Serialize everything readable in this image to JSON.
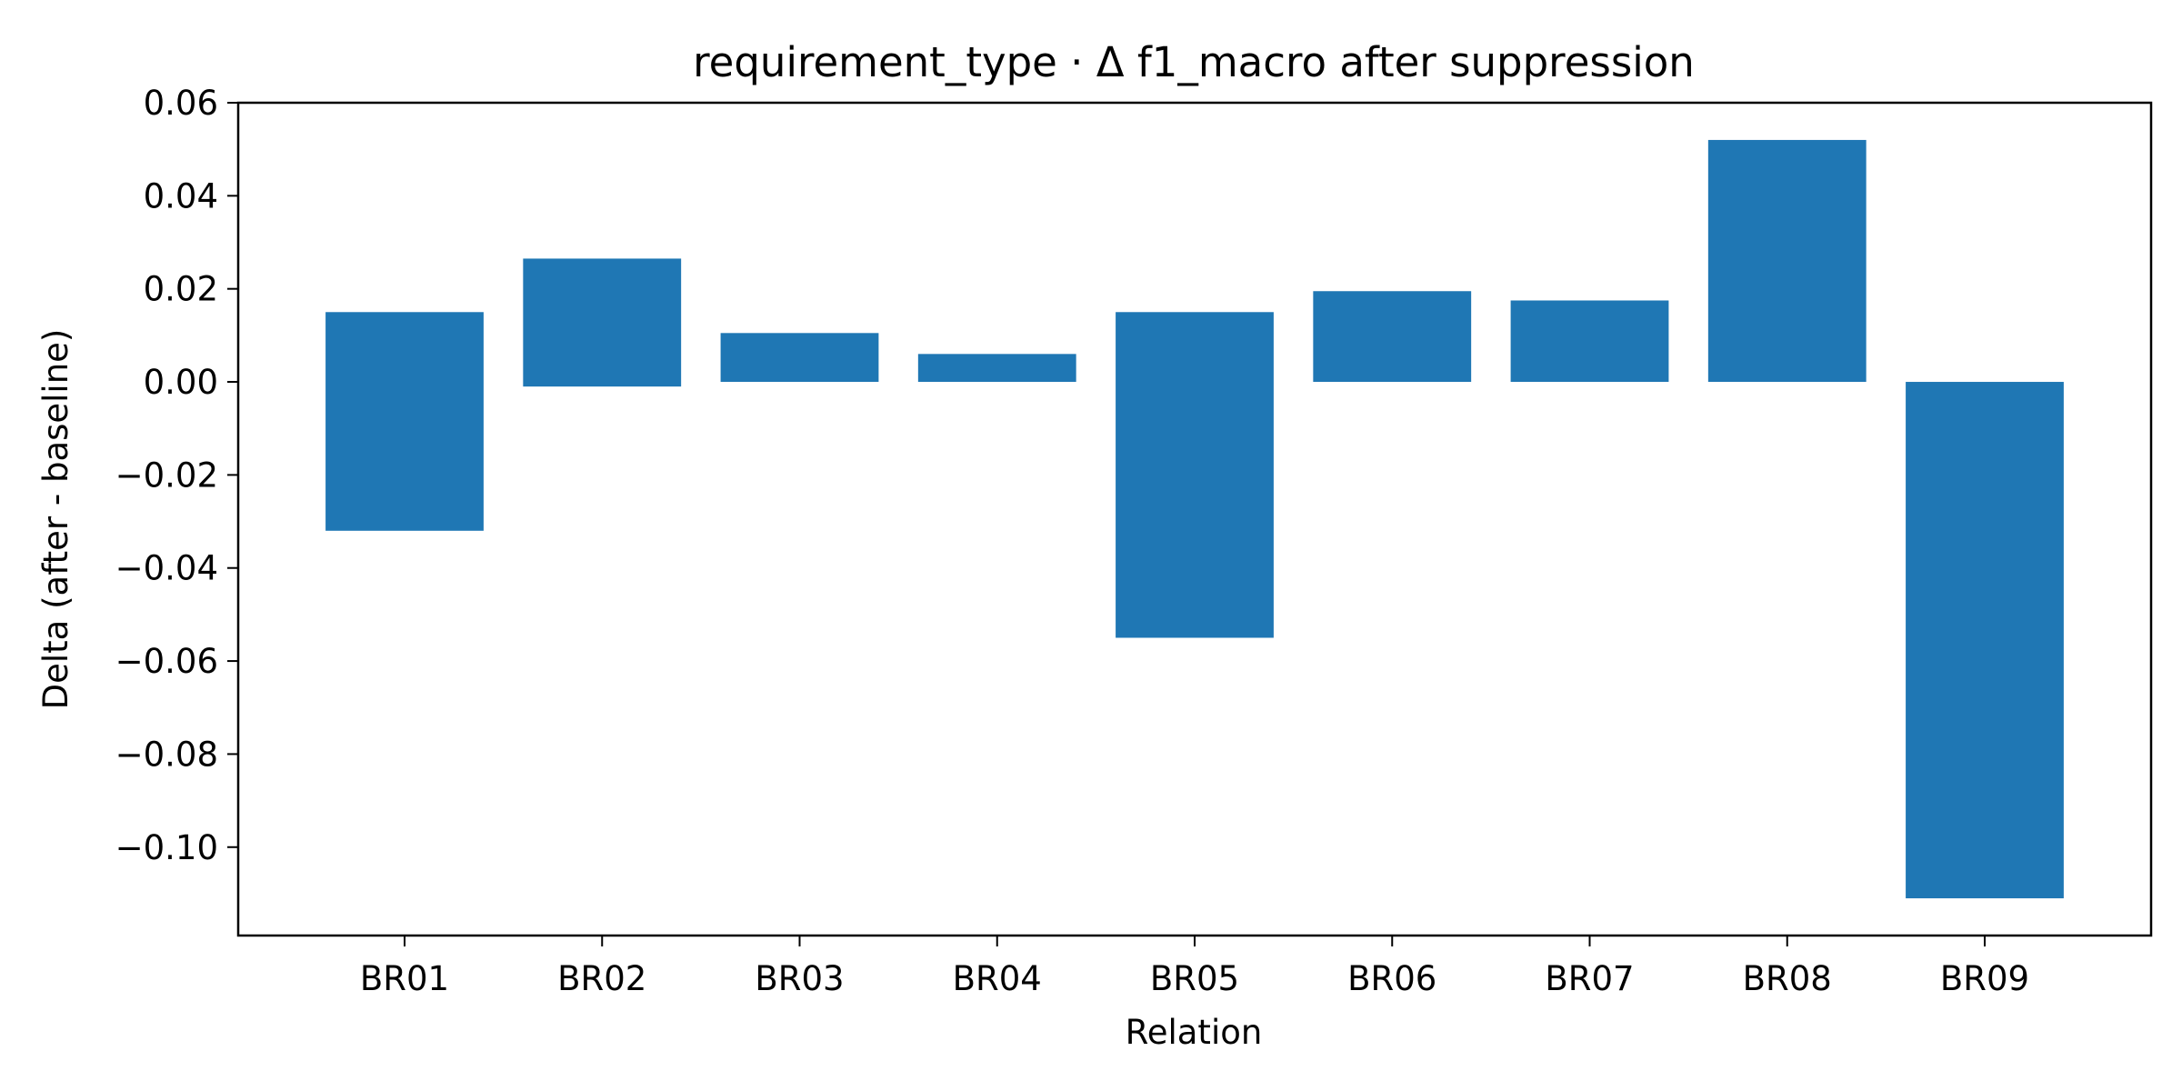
{
  "chart_data": {
    "type": "bar",
    "title": "requirement_type · Δ f1_macro after suppression",
    "xlabel": "Relation",
    "ylabel": "Delta (after - baseline)",
    "ylim": [
      -0.119,
      0.06
    ],
    "yticks": [
      0.06,
      0.04,
      0.02,
      0.0,
      -0.02,
      -0.04,
      -0.06,
      -0.08,
      -0.1
    ],
    "ytick_labels": [
      "0.06",
      "0.04",
      "0.02",
      "0.00",
      "−0.02",
      "−0.04",
      "−0.06",
      "−0.08",
      "−0.10"
    ],
    "grid": false,
    "legend": "none",
    "bar_color": "#1f77b4",
    "categories": [
      "BR01",
      "BR02",
      "BR03",
      "BR04",
      "BR05",
      "BR06",
      "BR07",
      "BR08",
      "BR09"
    ],
    "bars": [
      {
        "bottom": -0.032,
        "top": 0.015
      },
      {
        "bottom": -0.001,
        "top": 0.0265
      },
      {
        "bottom": 0.0,
        "top": 0.0105
      },
      {
        "bottom": 0.0,
        "top": 0.006
      },
      {
        "bottom": -0.055,
        "top": 0.015
      },
      {
        "bottom": 0.0,
        "top": 0.0195
      },
      {
        "bottom": 0.0,
        "top": 0.0175
      },
      {
        "bottom": 0.0,
        "top": 0.052
      },
      {
        "bottom": -0.111,
        "top": 0.0
      }
    ]
  }
}
